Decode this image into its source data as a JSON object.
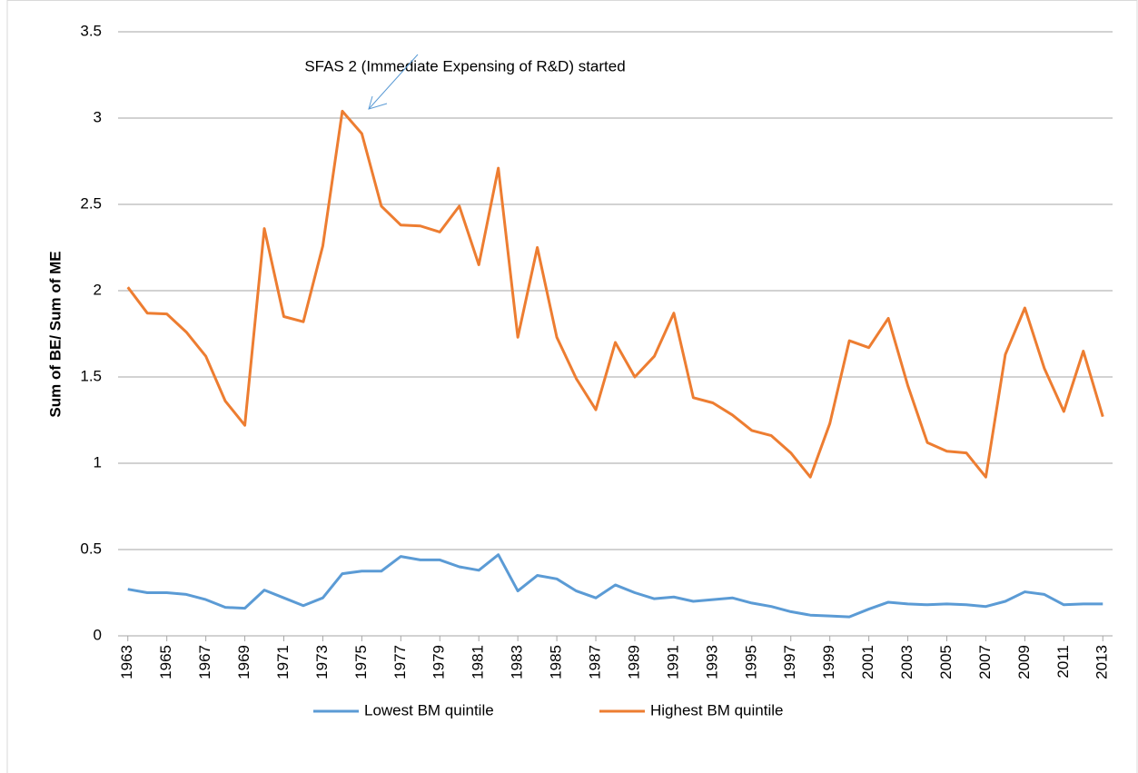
{
  "chart_data": {
    "type": "line",
    "annotation": "SFAS 2 (Immediate Expensing of R&D) started",
    "y_label": "Sum of BE/ Sum of ME",
    "x": [
      1963,
      1964,
      1965,
      1966,
      1967,
      1968,
      1969,
      1970,
      1971,
      1972,
      1973,
      1974,
      1975,
      1976,
      1977,
      1978,
      1979,
      1980,
      1981,
      1982,
      1983,
      1984,
      1985,
      1986,
      1987,
      1988,
      1989,
      1990,
      1991,
      1992,
      1993,
      1994,
      1995,
      1996,
      1997,
      1998,
      1999,
      2000,
      2001,
      2002,
      2003,
      2004,
      2005,
      2006,
      2007,
      2008,
      2009,
      2010,
      2011,
      2012,
      2013
    ],
    "series": [
      {
        "name": "Lowest BM quintile",
        "color": "#5b9bd5",
        "values": [
          0.27,
          0.25,
          0.25,
          0.24,
          0.21,
          0.165,
          0.16,
          0.265,
          0.22,
          0.175,
          0.22,
          0.36,
          0.375,
          0.375,
          0.46,
          0.44,
          0.44,
          0.4,
          0.38,
          0.47,
          0.26,
          0.35,
          0.33,
          0.26,
          0.22,
          0.295,
          0.25,
          0.215,
          0.225,
          0.2,
          0.21,
          0.22,
          0.19,
          0.17,
          0.14,
          0.12,
          0.115,
          0.11,
          0.155,
          0.195,
          0.185,
          0.18,
          0.185,
          0.18,
          0.17,
          0.2,
          0.255,
          0.24,
          0.18,
          0.185,
          0.185
        ]
      },
      {
        "name": "Highest BM quintile",
        "color": "#ed7d31",
        "values": [
          2.02,
          1.87,
          1.865,
          1.76,
          1.62,
          1.36,
          1.22,
          2.36,
          1.85,
          1.82,
          2.26,
          3.04,
          2.91,
          2.49,
          2.38,
          2.375,
          2.34,
          2.49,
          2.15,
          2.71,
          1.73,
          2.25,
          1.73,
          1.49,
          1.31,
          1.7,
          1.5,
          1.62,
          1.87,
          1.38,
          1.35,
          1.28,
          1.19,
          1.16,
          1.06,
          0.92,
          1.23,
          1.71,
          1.67,
          1.84,
          1.45,
          1.12,
          1.07,
          1.06,
          0.92,
          1.63,
          1.9,
          1.55,
          1.3,
          1.65,
          1.27
        ]
      }
    ],
    "xlim": [
      1962.5,
      2013.5
    ],
    "xticks": [
      1963,
      1965,
      1967,
      1969,
      1971,
      1973,
      1975,
      1977,
      1979,
      1981,
      1983,
      1985,
      1987,
      1989,
      1991,
      1993,
      1995,
      1997,
      1999,
      2001,
      2003,
      2005,
      2007,
      2009,
      2011,
      2013
    ],
    "ylim": [
      0,
      3.5
    ],
    "yticks": [
      0,
      0.5,
      1,
      1.5,
      2,
      2.5,
      3,
      3.5
    ],
    "grid": true,
    "legend": "bottom"
  }
}
